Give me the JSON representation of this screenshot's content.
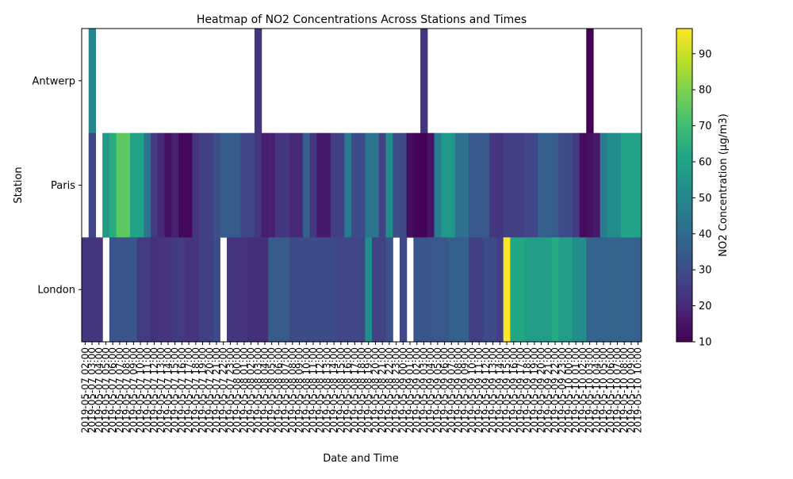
{
  "chart_data": {
    "type": "heatmap",
    "title": "Heatmap of NO2 Concentrations Across Stations and Times",
    "xlabel": "Date and Time",
    "ylabel": "Station",
    "colorbar_label": "NO2 Concentration (µg/m3)",
    "colormap": "viridis",
    "vmin": 10,
    "vmax": 97,
    "colorbar_ticks": [
      10,
      20,
      30,
      40,
      50,
      60,
      70,
      80,
      90
    ],
    "stations": [
      "Antwerp",
      "Paris",
      "London"
    ],
    "x": [
      "2019-05-07 02:00",
      "2019-05-07 03:00",
      "2019-05-07 04:00",
      "2019-05-07 05:00",
      "2019-05-07 06:00",
      "2019-05-07 07:00",
      "2019-05-07 08:00",
      "2019-05-07 09:00",
      "2019-05-07 10:00",
      "2019-05-07 11:00",
      "2019-05-07 12:00",
      "2019-05-07 13:00",
      "2019-05-07 14:00",
      "2019-05-07 15:00",
      "2019-05-07 16:00",
      "2019-05-07 17:00",
      "2019-05-07 18:00",
      "2019-05-07 19:00",
      "2019-05-07 20:00",
      "2019-05-07 21:00",
      "2019-05-07 22:00",
      "2019-05-07 23:00",
      "2019-05-08 00:00",
      "2019-05-08 01:00",
      "2019-05-08 02:00",
      "2019-05-08 03:00",
      "2019-05-08 04:00",
      "2019-05-08 05:00",
      "2019-05-08 06:00",
      "2019-05-08 07:00",
      "2019-05-08 08:00",
      "2019-05-08 09:00",
      "2019-05-08 10:00",
      "2019-05-08 11:00",
      "2019-05-08 12:00",
      "2019-05-08 13:00",
      "2019-05-08 14:00",
      "2019-05-08 15:00",
      "2019-05-08 16:00",
      "2019-05-08 17:00",
      "2019-05-08 18:00",
      "2019-05-08 19:00",
      "2019-05-08 20:00",
      "2019-05-08 21:00",
      "2019-05-08 22:00",
      "2019-05-08 23:00",
      "2019-05-09 00:00",
      "2019-05-09 01:00",
      "2019-05-09 02:00",
      "2019-05-09 03:00",
      "2019-05-09 04:00",
      "2019-05-09 05:00",
      "2019-05-09 06:00",
      "2019-05-09 07:00",
      "2019-05-09 08:00",
      "2019-05-09 09:00",
      "2019-05-09 10:00",
      "2019-05-09 11:00",
      "2019-05-09 12:00",
      "2019-05-09 13:00",
      "2019-05-09 14:00",
      "2019-05-09 15:00",
      "2019-05-09 16:00",
      "2019-05-09 17:00",
      "2019-05-09 18:00",
      "2019-05-09 19:00",
      "2019-05-09 20:00",
      "2019-05-09 21:00",
      "2019-05-09 22:00",
      "2019-05-09 23:00",
      "2019-05-10 00:00",
      "2019-05-10 01:00",
      "2019-05-10 02:00",
      "2019-05-10 03:00",
      "2019-05-10 04:00",
      "2019-05-10 05:00",
      "2019-05-10 06:00",
      "2019-05-10 07:00",
      "2019-05-10 08:00",
      "2019-05-10 09:00",
      "2019-05-10 10:00"
    ],
    "values": [
      [
        null,
        50,
        null,
        null,
        null,
        null,
        null,
        null,
        null,
        null,
        null,
        null,
        null,
        null,
        null,
        null,
        null,
        null,
        null,
        null,
        null,
        null,
        null,
        null,
        null,
        23,
        null,
        null,
        null,
        null,
        null,
        null,
        null,
        null,
        null,
        null,
        null,
        null,
        null,
        null,
        null,
        null,
        null,
        null,
        null,
        null,
        null,
        null,
        null,
        23,
        null,
        null,
        null,
        null,
        null,
        null,
        null,
        null,
        null,
        null,
        null,
        null,
        null,
        null,
        null,
        null,
        null,
        null,
        null,
        null,
        null,
        null,
        null,
        10,
        null,
        null,
        null,
        null,
        null,
        null,
        null
      ],
      [
        null,
        28,
        null,
        57,
        64,
        75,
        75,
        60,
        60,
        43,
        25,
        20,
        14,
        18,
        12,
        12,
        23,
        26,
        26,
        31,
        35,
        35,
        35,
        28,
        28,
        24,
        17,
        18,
        24,
        24,
        20,
        20,
        36,
        24,
        16,
        16,
        26,
        26,
        45,
        30,
        30,
        44,
        44,
        27,
        52,
        31,
        29,
        13,
        11,
        11,
        15,
        46,
        56,
        56,
        42,
        42,
        34,
        34,
        34,
        24,
        24,
        26,
        26,
        26,
        28,
        28,
        36,
        36,
        35,
        30,
        30,
        25,
        13,
        14,
        16,
        46,
        52,
        52,
        60,
        60,
        60
      ],
      [
        23,
        23,
        23,
        null,
        33,
        33,
        33,
        33,
        25,
        25,
        22,
        23,
        23,
        25,
        25,
        23,
        23,
        26,
        26,
        30,
        null,
        23,
        23,
        23,
        22,
        22,
        22,
        35,
        35,
        35,
        30,
        30,
        30,
        30,
        30,
        30,
        30,
        28,
        28,
        28,
        28,
        52,
        27,
        27,
        32,
        null,
        29,
        null,
        33,
        33,
        34,
        34,
        34,
        36,
        36,
        36,
        26,
        26,
        30,
        30,
        26,
        97,
        62,
        62,
        58,
        58,
        58,
        58,
        63,
        58,
        58,
        52,
        52,
        38,
        38,
        38,
        38,
        38,
        38,
        38,
        36
      ]
    ]
  }
}
